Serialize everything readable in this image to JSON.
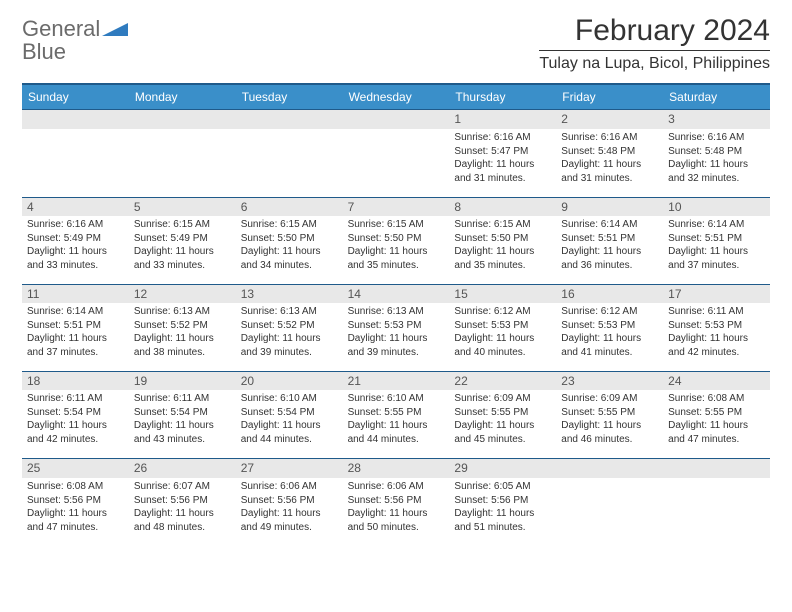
{
  "logo": {
    "text1": "General",
    "text2": "Blue"
  },
  "title": "February 2024",
  "location": "Tulay na Lupa, Bicol, Philippines",
  "colors": {
    "header_bg": "#3a8fc9",
    "header_text": "#ffffff",
    "border": "#1f5a8a",
    "daynum_bg": "#e8e8e8",
    "text": "#333333"
  },
  "weekdays": [
    "Sunday",
    "Monday",
    "Tuesday",
    "Wednesday",
    "Thursday",
    "Friday",
    "Saturday"
  ],
  "weeks": [
    [
      null,
      null,
      null,
      null,
      {
        "n": "1",
        "sr": "6:16 AM",
        "ss": "5:47 PM",
        "dl": "11 hours and 31 minutes."
      },
      {
        "n": "2",
        "sr": "6:16 AM",
        "ss": "5:48 PM",
        "dl": "11 hours and 31 minutes."
      },
      {
        "n": "3",
        "sr": "6:16 AM",
        "ss": "5:48 PM",
        "dl": "11 hours and 32 minutes."
      }
    ],
    [
      {
        "n": "4",
        "sr": "6:16 AM",
        "ss": "5:49 PM",
        "dl": "11 hours and 33 minutes."
      },
      {
        "n": "5",
        "sr": "6:15 AM",
        "ss": "5:49 PM",
        "dl": "11 hours and 33 minutes."
      },
      {
        "n": "6",
        "sr": "6:15 AM",
        "ss": "5:50 PM",
        "dl": "11 hours and 34 minutes."
      },
      {
        "n": "7",
        "sr": "6:15 AM",
        "ss": "5:50 PM",
        "dl": "11 hours and 35 minutes."
      },
      {
        "n": "8",
        "sr": "6:15 AM",
        "ss": "5:50 PM",
        "dl": "11 hours and 35 minutes."
      },
      {
        "n": "9",
        "sr": "6:14 AM",
        "ss": "5:51 PM",
        "dl": "11 hours and 36 minutes."
      },
      {
        "n": "10",
        "sr": "6:14 AM",
        "ss": "5:51 PM",
        "dl": "11 hours and 37 minutes."
      }
    ],
    [
      {
        "n": "11",
        "sr": "6:14 AM",
        "ss": "5:51 PM",
        "dl": "11 hours and 37 minutes."
      },
      {
        "n": "12",
        "sr": "6:13 AM",
        "ss": "5:52 PM",
        "dl": "11 hours and 38 minutes."
      },
      {
        "n": "13",
        "sr": "6:13 AM",
        "ss": "5:52 PM",
        "dl": "11 hours and 39 minutes."
      },
      {
        "n": "14",
        "sr": "6:13 AM",
        "ss": "5:53 PM",
        "dl": "11 hours and 39 minutes."
      },
      {
        "n": "15",
        "sr": "6:12 AM",
        "ss": "5:53 PM",
        "dl": "11 hours and 40 minutes."
      },
      {
        "n": "16",
        "sr": "6:12 AM",
        "ss": "5:53 PM",
        "dl": "11 hours and 41 minutes."
      },
      {
        "n": "17",
        "sr": "6:11 AM",
        "ss": "5:53 PM",
        "dl": "11 hours and 42 minutes."
      }
    ],
    [
      {
        "n": "18",
        "sr": "6:11 AM",
        "ss": "5:54 PM",
        "dl": "11 hours and 42 minutes."
      },
      {
        "n": "19",
        "sr": "6:11 AM",
        "ss": "5:54 PM",
        "dl": "11 hours and 43 minutes."
      },
      {
        "n": "20",
        "sr": "6:10 AM",
        "ss": "5:54 PM",
        "dl": "11 hours and 44 minutes."
      },
      {
        "n": "21",
        "sr": "6:10 AM",
        "ss": "5:55 PM",
        "dl": "11 hours and 44 minutes."
      },
      {
        "n": "22",
        "sr": "6:09 AM",
        "ss": "5:55 PM",
        "dl": "11 hours and 45 minutes."
      },
      {
        "n": "23",
        "sr": "6:09 AM",
        "ss": "5:55 PM",
        "dl": "11 hours and 46 minutes."
      },
      {
        "n": "24",
        "sr": "6:08 AM",
        "ss": "5:55 PM",
        "dl": "11 hours and 47 minutes."
      }
    ],
    [
      {
        "n": "25",
        "sr": "6:08 AM",
        "ss": "5:56 PM",
        "dl": "11 hours and 47 minutes."
      },
      {
        "n": "26",
        "sr": "6:07 AM",
        "ss": "5:56 PM",
        "dl": "11 hours and 48 minutes."
      },
      {
        "n": "27",
        "sr": "6:06 AM",
        "ss": "5:56 PM",
        "dl": "11 hours and 49 minutes."
      },
      {
        "n": "28",
        "sr": "6:06 AM",
        "ss": "5:56 PM",
        "dl": "11 hours and 50 minutes."
      },
      {
        "n": "29",
        "sr": "6:05 AM",
        "ss": "5:56 PM",
        "dl": "11 hours and 51 minutes."
      },
      null,
      null
    ]
  ],
  "labels": {
    "sunrise": "Sunrise: ",
    "sunset": "Sunset: ",
    "daylight": "Daylight: "
  }
}
